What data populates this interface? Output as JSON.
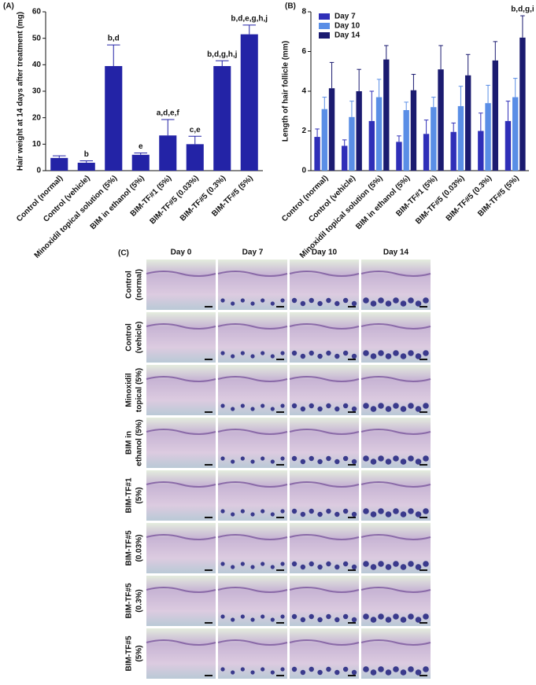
{
  "chart_data": [
    {
      "type": "bar",
      "panel_label": "(A)",
      "y_label": "Hair weight at 14 days after treatment (mg)",
      "categories": [
        "Control (normal)",
        "Control (vehicle)",
        "Minoxidil topical solution (5%)",
        "BIM in ethanol (5%)",
        "BIM-TF#1 (5%)",
        "BIM-TF#5 (0.03%)",
        "BIM-TF#5 (0.3%)",
        "BIM-TF#5 (5%)"
      ],
      "values": [
        4.8,
        3.0,
        39.5,
        6.0,
        13.3,
        10.0,
        39.5,
        51.5
      ],
      "errors": [
        0.8,
        0.7,
        8.0,
        0.7,
        6.0,
        3.0,
        2.0,
        3.5
      ],
      "annotations": [
        null,
        "b",
        "b,d",
        "e",
        "a,d,e,f",
        "c,e",
        "b,d,g,h,j",
        "b,d,e,g,h,j"
      ],
      "color": "#2323a6",
      "ylim": [
        0,
        60
      ],
      "yticks": [
        0,
        10,
        20,
        30,
        40,
        50,
        60
      ]
    },
    {
      "type": "grouped-bar",
      "panel_label": "(B)",
      "y_label": "Length of hair follicle (mm)",
      "categories": [
        "Control (normal)",
        "Control (vehicle)",
        "Minoxidil topical solution (5%)",
        "BIM in ethanol (5%)",
        "BIM-TF#1 (5%)",
        "BIM-TF#5 (0.03%)",
        "BIM-TF#5 (0.3%)",
        "BIM-TF#5 (5%)"
      ],
      "series": [
        {
          "name": "Day 7",
          "color": "#2f2fb8",
          "values": [
            1.7,
            1.25,
            2.5,
            1.45,
            1.85,
            1.95,
            2.0,
            2.5
          ],
          "errors": [
            0.4,
            0.3,
            1.5,
            0.3,
            0.7,
            0.45,
            0.9,
            1.0
          ]
        },
        {
          "name": "Day 10",
          "color": "#5a8ee6",
          "values": [
            3.1,
            2.7,
            3.7,
            3.05,
            3.2,
            3.25,
            3.4,
            3.7
          ],
          "errors": [
            0.6,
            0.8,
            0.9,
            0.4,
            0.5,
            1.0,
            0.9,
            0.95
          ]
        },
        {
          "name": "Day 14",
          "color": "#1b1b70",
          "values": [
            4.15,
            4.0,
            5.6,
            4.05,
            5.1,
            4.8,
            5.55,
            6.7
          ],
          "errors": [
            1.3,
            1.1,
            0.7,
            0.8,
            1.2,
            1.05,
            0.95,
            1.1
          ],
          "annotations": [
            null,
            null,
            null,
            null,
            null,
            null,
            null,
            "b,d,g,i"
          ]
        }
      ],
      "legend": "upper left",
      "ylim": [
        0,
        8
      ],
      "yticks": [
        0,
        2,
        4,
        6,
        8
      ]
    }
  ],
  "panel_c": {
    "label": "(C)",
    "columns": [
      "Day 0",
      "Day 7",
      "Day 10",
      "Day 14"
    ],
    "rows": [
      [
        "Control",
        "(normal)"
      ],
      [
        "Control",
        "(vehicle)"
      ],
      [
        "Minoxidil",
        "topical (5%)"
      ],
      [
        "BIM in",
        "ethanol (5%)"
      ],
      [
        "BIM-TF#1",
        "(5%)"
      ],
      [
        "BIM-TF#5",
        "(0.03%)"
      ],
      [
        "BIM-TF#5",
        "(0.3%)"
      ],
      [
        "BIM-TF#5",
        "(5%)"
      ]
    ]
  }
}
